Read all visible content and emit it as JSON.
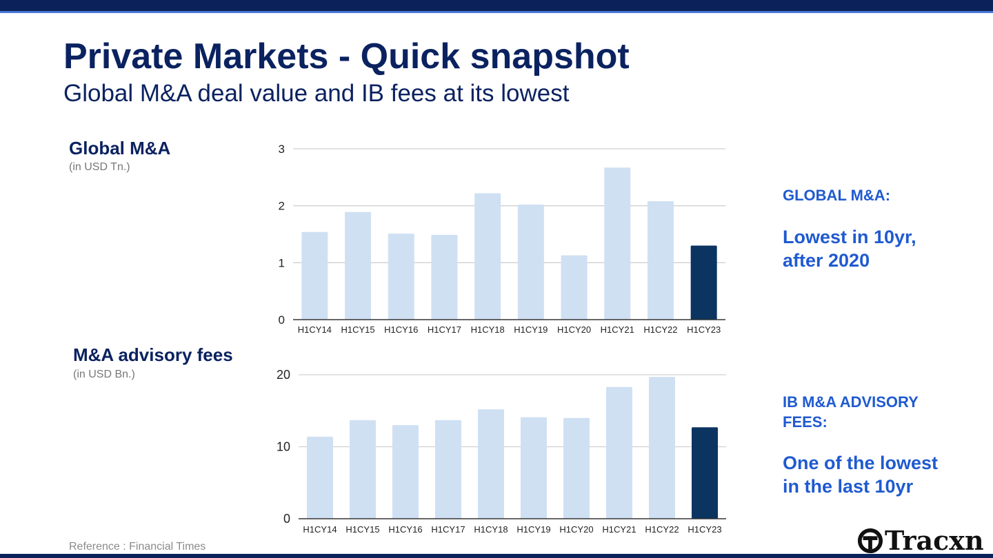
{
  "header": {
    "title": "Private Markets - Quick snapshot",
    "subtitle": "Global M&A deal value and IB fees at its lowest"
  },
  "sections": {
    "ma": {
      "title": "Global M&A",
      "unit": "(in USD Tn.)"
    },
    "fees": {
      "title": "M&A advisory fees",
      "unit": "(in USD Bn.)"
    }
  },
  "notes": {
    "ma": {
      "heading": "GLOBAL M&A:",
      "body_line1": "Lowest in 10yr,",
      "body_line2": "after 2020"
    },
    "fees": {
      "heading_line1": "IB M&A ADVISORY",
      "heading_line2": "FEES:",
      "body_line1": "One of the lowest",
      "body_line2": "in the last 10yr"
    }
  },
  "reference": "Reference : Financial Times",
  "logo": {
    "text": "Tracxn",
    "icon": "tracxn-logo-icon"
  },
  "colors": {
    "bar": "#cfe0f3",
    "highlight": "#0b3461",
    "brand": "#0b2260",
    "accent": "#1f5ad0"
  },
  "chart_data": [
    {
      "type": "bar",
      "categories": [
        "H1CY14",
        "H1CY15",
        "H1CY16",
        "H1CY17",
        "H1CY18",
        "H1CY19",
        "H1CY20",
        "H1CY21",
        "H1CY22",
        "H1CY23"
      ],
      "values": [
        1.54,
        1.89,
        1.51,
        1.49,
        2.22,
        2.02,
        1.13,
        2.67,
        2.08,
        1.3
      ],
      "highlight_index": 9,
      "ylim": [
        0,
        3
      ],
      "yticks": [
        0,
        1,
        2,
        3
      ],
      "grid": true
    },
    {
      "type": "bar",
      "categories": [
        "H1CY14",
        "H1CY15",
        "H1CY16",
        "H1CY17",
        "H1CY18",
        "H1CY19",
        "H1CY20",
        "H1CY21",
        "H1CY22",
        "H1CY23"
      ],
      "values": [
        11.4,
        13.7,
        13.0,
        13.7,
        15.2,
        14.1,
        14.0,
        18.3,
        19.7,
        12.7
      ],
      "highlight_index": 9,
      "ylim": [
        0,
        20
      ],
      "yticks": [
        0,
        10,
        20
      ],
      "grid": true
    }
  ]
}
